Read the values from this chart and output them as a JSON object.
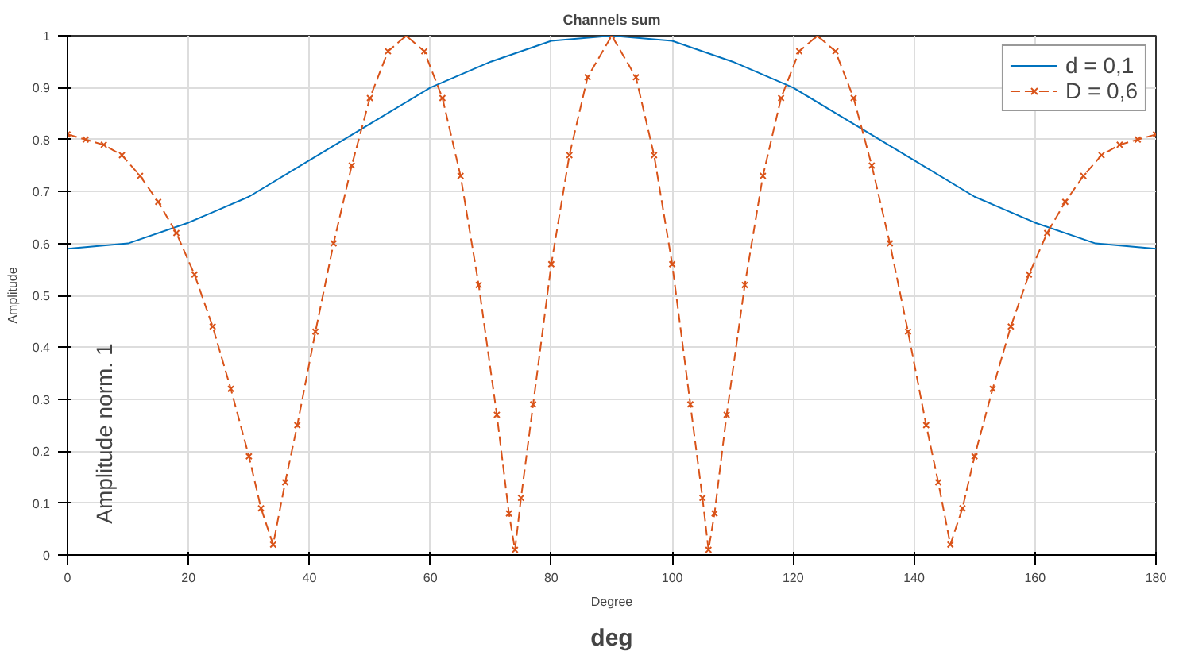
{
  "chart_data": {
    "type": "line",
    "title": "Channels sum",
    "xlabel": "Degree",
    "ylabel": "Amplitude",
    "annotations": [
      "Amplitude norm. 1",
      "deg"
    ],
    "xlim": [
      0,
      180
    ],
    "xticks": [
      0,
      20,
      40,
      60,
      80,
      100,
      120,
      140,
      160,
      180
    ],
    "ylim": [
      0,
      1
    ],
    "yticks": [
      0,
      0.1,
      0.2,
      0.3,
      0.4,
      0.5,
      0.6,
      0.7,
      0.8,
      0.9,
      1
    ],
    "grid": true,
    "legend": "top right",
    "series": [
      {
        "name": "d = 0,1",
        "color": "#0072bd",
        "marker": "none",
        "line_style": "solid",
        "x": [
          0,
          10,
          20,
          30,
          40,
          50,
          60,
          70,
          80,
          90,
          100,
          110,
          120,
          130,
          140,
          150,
          160,
          170,
          180
        ],
        "values": [
          0.59,
          0.6,
          0.64,
          0.69,
          0.76,
          0.83,
          0.9,
          0.95,
          0.99,
          1.0,
          0.99,
          0.95,
          0.9,
          0.83,
          0.76,
          0.69,
          0.64,
          0.6,
          0.59
        ]
      },
      {
        "name": "D = 0,6",
        "color": "#d95319",
        "marker": "cross",
        "line_style": "dashed",
        "x": [
          0,
          3,
          6,
          9,
          12,
          15,
          18,
          21,
          24,
          27,
          30,
          32,
          34,
          36,
          38,
          41,
          44,
          47,
          50,
          53,
          56,
          59,
          62,
          65,
          68,
          71,
          73,
          74,
          75,
          77,
          80,
          83,
          86,
          90,
          94,
          97,
          100,
          103,
          105,
          106,
          107,
          109,
          112,
          115,
          118,
          121,
          124,
          127,
          130,
          133,
          136,
          139,
          142,
          144,
          146,
          148,
          150,
          153,
          156,
          159,
          162,
          165,
          168,
          171,
          174,
          177,
          180
        ],
        "values": [
          0.81,
          0.8,
          0.79,
          0.77,
          0.73,
          0.68,
          0.62,
          0.54,
          0.44,
          0.32,
          0.19,
          0.09,
          0.02,
          0.14,
          0.25,
          0.43,
          0.6,
          0.75,
          0.88,
          0.97,
          1.0,
          0.97,
          0.88,
          0.73,
          0.52,
          0.27,
          0.08,
          0.01,
          0.11,
          0.29,
          0.56,
          0.77,
          0.92,
          1.0,
          0.92,
          0.77,
          0.56,
          0.29,
          0.11,
          0.01,
          0.08,
          0.27,
          0.52,
          0.73,
          0.88,
          0.97,
          1.0,
          0.97,
          0.88,
          0.75,
          0.6,
          0.43,
          0.25,
          0.14,
          0.02,
          0.09,
          0.19,
          0.32,
          0.44,
          0.54,
          0.62,
          0.68,
          0.73,
          0.77,
          0.79,
          0.8,
          0.81
        ]
      }
    ]
  }
}
